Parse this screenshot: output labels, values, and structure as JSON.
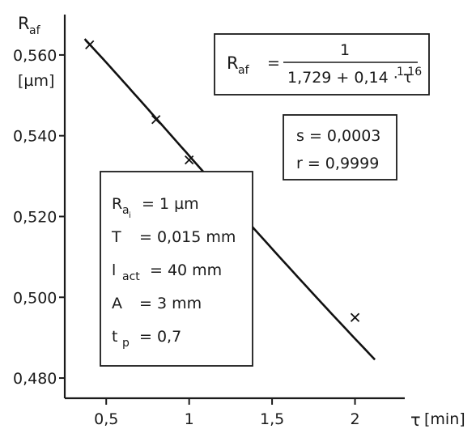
{
  "chart_data": {
    "type": "scatter",
    "y_symbol": "R",
    "y_subscript": "af",
    "y_unit": "[µm]",
    "x_symbol": "τ",
    "x_unit": "[min]",
    "xlim": [
      0.25,
      2.3
    ],
    "ylim": [
      0.475,
      0.57
    ],
    "x_ticks": [
      0.5,
      1,
      1.5,
      2
    ],
    "x_tick_labels": [
      "0,5",
      "1",
      "1,5",
      "2"
    ],
    "y_ticks": [
      0.48,
      0.5,
      0.52,
      0.54,
      0.56
    ],
    "y_tick_labels": [
      "0,480",
      "0,500",
      "0,520",
      "0,540",
      "0,560"
    ],
    "points": [
      {
        "x": 0.4,
        "y": 0.5625
      },
      {
        "x": 0.8,
        "y": 0.544
      },
      {
        "x": 1.0,
        "y": 0.534
      },
      {
        "x": 2.0,
        "y": 0.495
      }
    ],
    "curve": {
      "x_range": [
        0.37,
        2.12
      ],
      "numerator": 1,
      "const": 1.729,
      "coef": 0.14,
      "exponent": 1.16
    },
    "formula": {
      "lhs": "R",
      "lhs_sub": "af",
      "eq": "=",
      "numerator": "1",
      "denominator": "1,729 + 0,14 · τ",
      "exponent": "1.16"
    },
    "stats": [
      "s = 0,0003",
      "r = 0,9999"
    ],
    "conditions": [
      {
        "sym": "R",
        "sub": "a",
        "subsub": "i",
        "val": "= 1 µm"
      },
      {
        "sym": "T",
        "sub": "",
        "subsub": "",
        "val": "= 0,015 mm"
      },
      {
        "sym": "l",
        "sub": "act",
        "subsub": "",
        "val": "= 40 mm"
      },
      {
        "sym": "A",
        "sub": "",
        "subsub": "",
        "val": "= 3 mm"
      },
      {
        "sym": "t",
        "sub": "p",
        "subsub": "",
        "val": "= 0,7"
      }
    ]
  }
}
